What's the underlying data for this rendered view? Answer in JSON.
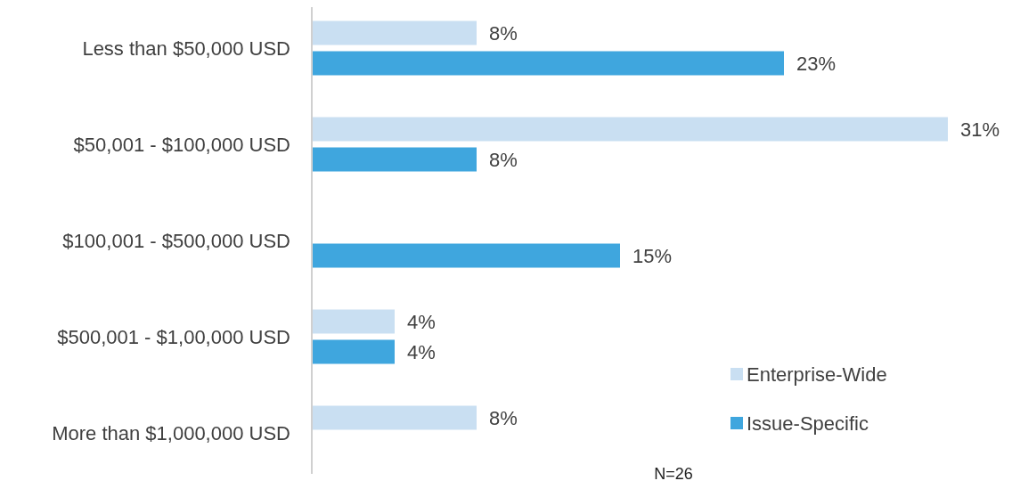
{
  "chart_data": {
    "type": "bar",
    "orientation": "horizontal",
    "categories": [
      "Less than $50,000 USD",
      "$50,001 - $100,000 USD",
      "$100,001 - $500,000 USD",
      "$500,001 - $1,00,000 USD",
      "More than $1,000,000 USD"
    ],
    "series": [
      {
        "name": "Enterprise-Wide",
        "color": "#c9dff2",
        "values": [
          8,
          31,
          null,
          4,
          8
        ],
        "value_labels": [
          "8%",
          "31%",
          null,
          "4%",
          "8%"
        ]
      },
      {
        "name": "Issue-Specific",
        "color": "#3fa6de",
        "values": [
          23,
          8,
          15,
          4,
          null
        ],
        "value_labels": [
          "23%",
          "8%",
          "15%",
          "4%",
          null
        ]
      }
    ],
    "legend": "bottom right",
    "annotations": [
      "N=26"
    ]
  }
}
